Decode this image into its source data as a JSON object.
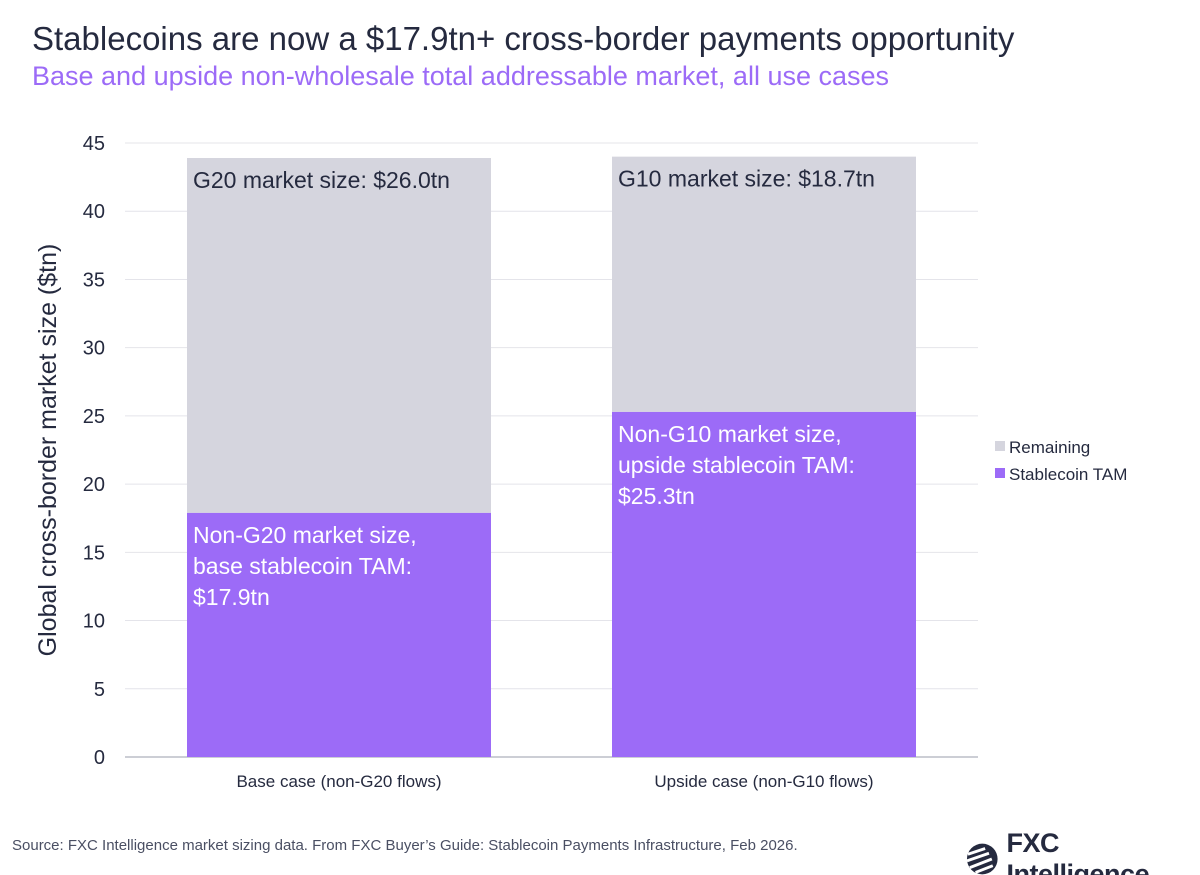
{
  "title": "Stablecoins are now a $17.9tn+ cross-border payments opportunity",
  "subtitle": "Base and upside non-wholesale total addressable market, all use cases",
  "source": "Source: FXC Intelligence market sizing data. From FXC Buyer’s Guide: Stablecoin Payments Infrastructure, Feb 2026.",
  "logo_text": "FXC Intelligence",
  "chart_data": {
    "type": "bar",
    "stacked": true,
    "categories": [
      "Base case (non-G20 flows)",
      "Upside case (non-G10 flows)"
    ],
    "series": [
      {
        "name": "Stablecoin TAM",
        "values": [
          17.9,
          25.3
        ],
        "color": "#9c6bf7"
      },
      {
        "name": "Remaining",
        "values": [
          26.0,
          18.7
        ],
        "color": "#d5d5de"
      }
    ],
    "annotations": [
      {
        "category": 0,
        "series": "Remaining",
        "text": "G20 market size: $26.0tn"
      },
      {
        "category": 0,
        "series": "Stablecoin TAM",
        "text": [
          "Non-G20 market size,",
          "base stablecoin TAM:",
          "$17.9tn"
        ]
      },
      {
        "category": 1,
        "series": "Remaining",
        "text": "G10 market size: $18.7tn"
      },
      {
        "category": 1,
        "series": "Stablecoin TAM",
        "text": [
          "Non-G10 market size,",
          "upside stablecoin TAM:",
          "$25.3tn"
        ]
      }
    ],
    "ylabel": "Global cross-border market size ($tn)",
    "ylim": [
      0,
      45
    ],
    "yticks": [
      0,
      5,
      10,
      15,
      20,
      25,
      30,
      35,
      40,
      45
    ],
    "grid": true,
    "legend_position": "right",
    "legend_order": [
      "Remaining",
      "Stablecoin TAM"
    ]
  }
}
